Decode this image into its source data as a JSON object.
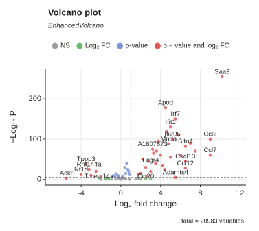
{
  "chart_data": {
    "type": "scatter",
    "title": "Volcano plot",
    "subtitle": "EnhancedVolcano",
    "x_label": "Log₂ fold change",
    "y_label": "−Log₁₀ P",
    "caption": "total = 20983 variables",
    "xlim": [
      -7.6,
      12.6
    ],
    "ylim": [
      -14,
      275
    ],
    "xticks": [
      -4,
      0,
      4,
      8,
      12
    ],
    "yticks": [
      0,
      100,
      200
    ],
    "grid": true,
    "cutoffs": {
      "x": [
        -1,
        1
      ],
      "y": 5
    },
    "series": [
      {
        "name": "NS",
        "color": "#9a9a9a",
        "x": [
          -0.5,
          0,
          0.5,
          -1.5,
          1.5,
          -0.2,
          0.3,
          -0.9,
          0.9,
          -2,
          2,
          0.1
        ],
        "y": [
          1,
          0.5,
          2,
          0.8,
          1.5,
          3,
          2.5,
          1,
          0.3,
          0.5,
          1,
          4
        ]
      },
      {
        "name": "Log₂ FC",
        "color": "#6ab86a",
        "x": [
          -1.5,
          1.8,
          2.5,
          -2.2,
          3.0,
          -1.2
        ],
        "y": [
          2,
          3,
          1,
          4,
          2,
          1
        ]
      },
      {
        "name": "p-value",
        "color": "#7d93d8",
        "x": [
          0.2,
          -0.3,
          0.5,
          -0.6,
          0.8,
          -0.8,
          0.4,
          0.9,
          -0.2,
          0.7,
          0.6,
          -0.5
        ],
        "y": [
          8,
          10,
          15,
          7,
          20,
          9,
          30,
          12,
          6,
          25,
          40,
          14
        ]
      },
      {
        "name": "p − value and log₂ FC",
        "color": "#e05555",
        "x": [
          10.2,
          4.5,
          5.5,
          5.0,
          5.2,
          4.8,
          3.2,
          3.6,
          4.0,
          6.5,
          9.0,
          9.0,
          6.5,
          6.5,
          5.5,
          -3.5,
          -3.2,
          -4.0,
          -5.5,
          2.2,
          2.8,
          3.5,
          4.2,
          2.5,
          3.0,
          5.8,
          7.0,
          4.6,
          3.8,
          2.0,
          -2.5,
          -3.0,
          6.0,
          5.0,
          3.3,
          2.6,
          4.4,
          -2.0,
          1.8,
          7.5
        ],
        "y": [
          255,
          178,
          150,
          130,
          100,
          88,
          75,
          70,
          60,
          82,
          100,
          60,
          45,
          28,
          5,
          38,
          25,
          12,
          3,
          50,
          45,
          40,
          35,
          30,
          20,
          110,
          90,
          120,
          95,
          15,
          20,
          10,
          60,
          55,
          65,
          8,
          25,
          6,
          12,
          70
        ]
      }
    ],
    "annotations": [
      {
        "text": "Saa3",
        "x": 10.2,
        "y": 255
      },
      {
        "text": "Apod",
        "x": 4.5,
        "y": 178
      },
      {
        "text": "Irf7",
        "x": 5.5,
        "y": 150
      },
      {
        "text": "Ifit1",
        "x": 5.0,
        "y": 130
      },
      {
        "text": "Ifi205",
        "x": 5.2,
        "y": 100
      },
      {
        "text": "Mnda",
        "x": 4.8,
        "y": 88
      },
      {
        "text": "A1607873",
        "x": 3.2,
        "y": 75
      },
      {
        "text": "Slfn4",
        "x": 6.5,
        "y": 82
      },
      {
        "text": "Ccl2",
        "x": 9.0,
        "y": 100
      },
      {
        "text": "Ccl7",
        "x": 9.0,
        "y": 60
      },
      {
        "text": "Cxcl13",
        "x": 6.5,
        "y": 45
      },
      {
        "text": "Ccl12",
        "x": 6.5,
        "y": 28
      },
      {
        "text": "Adamts4",
        "x": 5.5,
        "y": 5
      },
      {
        "text": "Tppp3",
        "x": -3.5,
        "y": 38
      },
      {
        "text": "Rnf144a",
        "x": -3.2,
        "y": 25
      },
      {
        "text": "Nt1d",
        "x": -4.0,
        "y": 12
      },
      {
        "text": "Ackr",
        "x": -5.5,
        "y": 3
      },
      {
        "text": "Tmem14a",
        "x": -2.2,
        "y": -5
      },
      {
        "text": "Ccl20",
        "x": 2.5,
        "y": -5
      },
      {
        "text": "Fcgr4",
        "x": 3.0,
        "y": 35
      }
    ]
  }
}
